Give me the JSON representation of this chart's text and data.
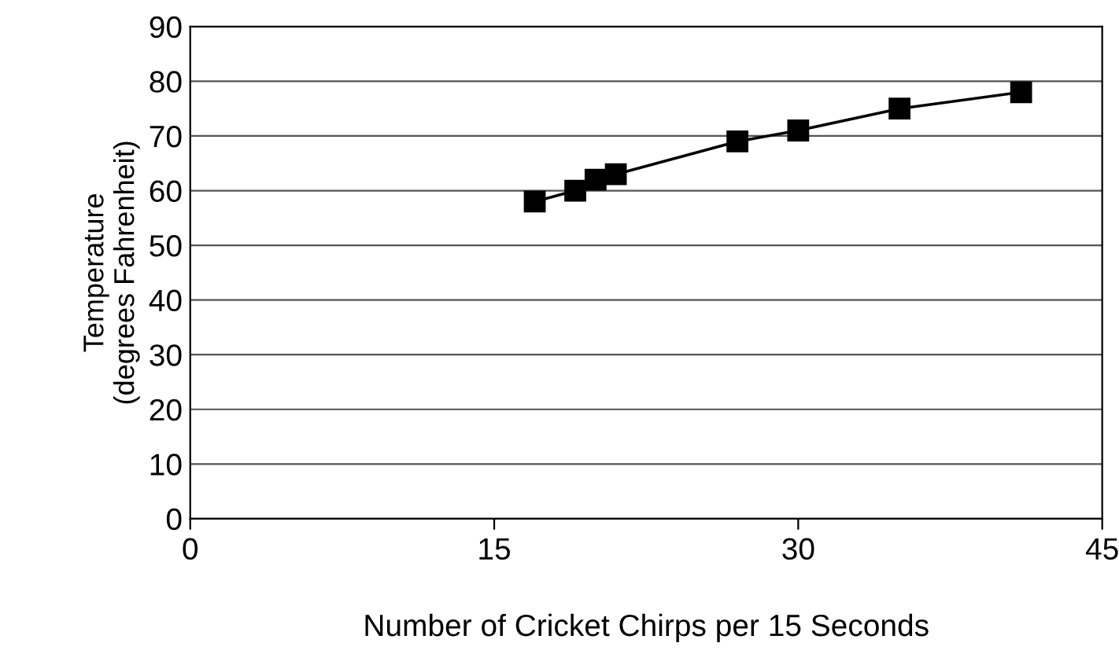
{
  "chart_data": {
    "type": "line",
    "xlabel": "Number of Cricket Chirps per 15 Seconds",
    "ylabel": "Temperature\n(degrees Fahrenheit)",
    "x": [
      17,
      19,
      20,
      21,
      27,
      30,
      35,
      41
    ],
    "series": [
      {
        "color": "#000000",
        "values": [
          58,
          60,
          62,
          63,
          69,
          71,
          75,
          78
        ]
      }
    ],
    "xlim": [
      0,
      45
    ],
    "xticks": [
      0,
      15,
      30,
      45
    ],
    "ylim": [
      0,
      90
    ],
    "yticks": [
      0,
      10,
      20,
      30,
      40,
      50,
      60,
      70,
      80,
      90
    ],
    "grid": "y",
    "marker": "square",
    "line_style": "solid",
    "legend": false
  }
}
